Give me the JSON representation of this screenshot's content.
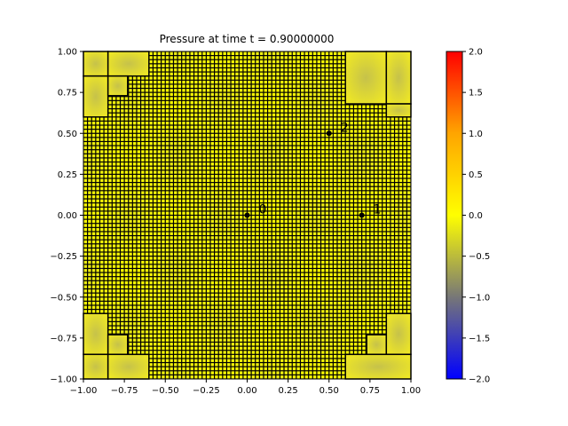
{
  "chart_data": {
    "type": "heatmap",
    "title": "Pressure at time t =      0.90000000",
    "xlabel": "",
    "ylabel": "",
    "xlim": [
      -1.0,
      1.0
    ],
    "ylim": [
      -1.0,
      1.0
    ],
    "x_ticks": [
      -1.0,
      -0.75,
      -0.5,
      -0.25,
      0.0,
      0.25,
      0.5,
      0.75,
      1.0
    ],
    "x_tick_labels": [
      "−1.00",
      "−0.75",
      "−0.50",
      "−0.25",
      "0.00",
      "0.25",
      "0.50",
      "0.75",
      "1.00"
    ],
    "y_ticks": [
      -1.0,
      -0.75,
      -0.5,
      -0.25,
      0.0,
      0.25,
      0.5,
      0.75,
      1.0
    ],
    "y_tick_labels": [
      "−1.00",
      "−0.75",
      "−0.50",
      "−0.25",
      "0.00",
      "0.25",
      "0.50",
      "0.75",
      "1.00"
    ],
    "colorbar": {
      "range": [
        -2.0,
        2.0
      ],
      "ticks": [
        -2.0,
        -1.5,
        -1.0,
        -0.5,
        0.0,
        0.5,
        1.0,
        1.5,
        2.0
      ],
      "tick_labels": [
        "−2.0",
        "−1.5",
        "−1.0",
        "−0.5",
        "0.0",
        "0.5",
        "1.0",
        "1.5",
        "2.0"
      ],
      "colors": [
        "#0000ff",
        "#777777",
        "#ffff00",
        "#ff0000"
      ]
    },
    "field": {
      "min_value": -0.35,
      "max_value": 0.0
    },
    "fine_mesh": {
      "cell_size": 0.025,
      "grid_color": "#000000"
    },
    "coarse_blocks": [
      {
        "x": [
          -1.0,
          -0.85
        ],
        "y": [
          0.85,
          1.0
        ]
      },
      {
        "x": [
          -0.85,
          -0.6
        ],
        "y": [
          0.85,
          1.0
        ]
      },
      {
        "x": [
          -1.0,
          -0.85
        ],
        "y": [
          0.6,
          0.85
        ]
      },
      {
        "x": [
          -0.85,
          -0.73
        ],
        "y": [
          0.73,
          0.85
        ]
      },
      {
        "x": [
          0.6,
          0.85
        ],
        "y": [
          0.68,
          1.0
        ]
      },
      {
        "x": [
          0.85,
          1.0
        ],
        "y": [
          0.68,
          1.0
        ]
      },
      {
        "x": [
          0.85,
          1.0
        ],
        "y": [
          0.6,
          0.68
        ]
      },
      {
        "x": [
          -1.0,
          -0.85
        ],
        "y": [
          -0.85,
          -0.6
        ]
      },
      {
        "x": [
          -1.0,
          -0.85
        ],
        "y": [
          -1.0,
          -0.85
        ]
      },
      {
        "x": [
          -0.85,
          -0.73
        ],
        "y": [
          -0.85,
          -0.73
        ]
      },
      {
        "x": [
          -0.85,
          -0.6
        ],
        "y": [
          -1.0,
          -0.85
        ]
      },
      {
        "x": [
          0.73,
          0.85
        ],
        "y": [
          -0.85,
          -0.73
        ]
      },
      {
        "x": [
          0.85,
          1.0
        ],
        "y": [
          -0.85,
          -0.6
        ]
      },
      {
        "x": [
          0.6,
          1.0
        ],
        "y": [
          -1.0,
          -0.85
        ]
      }
    ],
    "probes": [
      {
        "label": "0",
        "x": 0.0,
        "y": 0.0
      },
      {
        "label": "1",
        "x": 0.7,
        "y": 0.0
      },
      {
        "label": "2",
        "x": 0.5,
        "y": 0.5
      }
    ]
  }
}
